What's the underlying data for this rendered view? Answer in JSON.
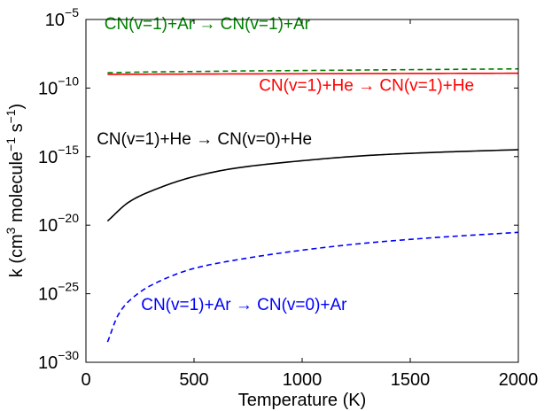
{
  "chart_data": {
    "type": "line",
    "xlabel": "Temperature (K)",
    "ylabel": {
      "prefix": "k (cm",
      "sup1": "3",
      "middle": " molecule",
      "sup2": "−1",
      "middle2": " s",
      "sup3": "−1",
      "suffix": ")"
    },
    "xlim": [
      0,
      2000
    ],
    "ylim": [
      1e-30,
      1e-05
    ],
    "yscale": "log",
    "grid": false,
    "x_ticks": [
      {
        "value": 0,
        "label": "0"
      },
      {
        "value": 500,
        "label": "500"
      },
      {
        "value": 1000,
        "label": "1000"
      },
      {
        "value": 1500,
        "label": "1500"
      },
      {
        "value": 2000,
        "label": "2000"
      }
    ],
    "y_ticks": [
      {
        "value": -30,
        "base": "10",
        "exp": "−30"
      },
      {
        "value": -25,
        "base": "10",
        "exp": "−25"
      },
      {
        "value": -20,
        "base": "10",
        "exp": "−20"
      },
      {
        "value": -15,
        "base": "10",
        "exp": "−15"
      },
      {
        "value": -10,
        "base": "10",
        "exp": "−10"
      },
      {
        "value": -5,
        "base": "10",
        "exp": "−5"
      }
    ],
    "series": [
      {
        "name": "CN(v=1)+Ar → CN(v=1)+Ar",
        "color": "#008000",
        "dash": "dashed",
        "x": [
          100,
          300,
          500,
          700,
          1000,
          1500,
          2000
        ],
        "y": [
          1.3e-09,
          1.5e-09,
          1.6e-09,
          1.75e-09,
          1.9e-09,
          2.2e-09,
          2.5e-09
        ]
      },
      {
        "name": "CN(v=1)+He → CN(v=1)+He",
        "color": "#ff0000",
        "dash": "solid",
        "x": [
          100,
          500,
          1000,
          1500,
          2000
        ],
        "y": [
          1e-09,
          1.05e-09,
          1.1e-09,
          1.15e-09,
          1.2e-09
        ]
      },
      {
        "name": "CN(v=1)+He → CN(v=0)+He",
        "color": "#000000",
        "dash": "solid",
        "x": [
          100,
          200,
          300,
          500,
          700,
          1000,
          1300,
          1600,
          2000
        ],
        "y": [
          2e-20,
          5e-19,
          3e-18,
          3.5e-17,
          1.5e-16,
          5e-16,
          1.2e-15,
          2e-15,
          3.2e-15
        ]
      },
      {
        "name": "CN(v=1)+Ar → CN(v=0)+Ar",
        "color": "#0000ff",
        "dash": "dashed",
        "x": [
          100,
          150,
          200,
          300,
          500,
          700,
          1000,
          1300,
          1600,
          2000
        ],
        "y": [
          3e-29,
          3e-27,
          3e-26,
          4e-25,
          7e-24,
          3e-23,
          1.5e-22,
          5e-22,
          1.2e-21,
          3e-21
        ]
      }
    ],
    "annotations": [
      {
        "text": "CN(v=1)+Ar → CN(v=1)+Ar",
        "color": "#008000",
        "x": 85,
        "y": -5.7
      },
      {
        "text": "CN(v=1)+He → CN(v=1)+He",
        "color": "#ff0000",
        "x": 800,
        "y": -10.2
      },
      {
        "text": "CN(v=1)+He → CN(v=0)+He",
        "color": "#000000",
        "x": 50,
        "y": -14.1
      },
      {
        "text": "CN(v=1)+Ar → CN(v=0)+Ar",
        "color": "#0000ff",
        "x": 255,
        "y": -26.2
      }
    ]
  }
}
